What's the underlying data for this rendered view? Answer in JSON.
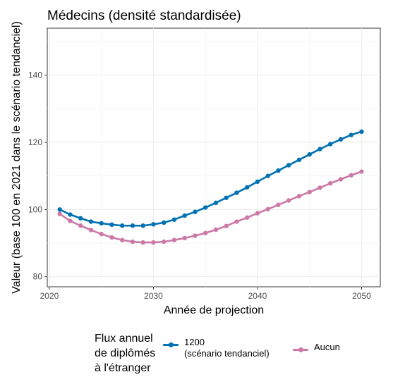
{
  "chart_data": {
    "type": "line",
    "title": "Médecins (densité standardisée)",
    "xlabel": "Année de projection",
    "ylabel": "Valeur (base 100 en 2021 dans le scénario tendanciel)",
    "xlim": [
      2019.8,
      2051.8
    ],
    "ylim": [
      77,
      154
    ],
    "x_ticks": [
      2020,
      2030,
      2040,
      2050
    ],
    "y_ticks": [
      80,
      100,
      120,
      140
    ],
    "grid": true,
    "legend_position": "bottom",
    "legend_title": "Flux annuel\nde diplômés\nà l'étranger",
    "x": [
      2021,
      2022,
      2023,
      2024,
      2025,
      2026,
      2027,
      2028,
      2029,
      2030,
      2031,
      2032,
      2033,
      2034,
      2035,
      2036,
      2037,
      2038,
      2039,
      2040,
      2041,
      2042,
      2043,
      2044,
      2045,
      2046,
      2047,
      2048,
      2049,
      2050
    ],
    "series": [
      {
        "name": "1200\n(scénario tendanciel)",
        "color": "#0072b2",
        "values": [
          100,
          98.5,
          97.4,
          96.4,
          95.9,
          95.5,
          95.2,
          95.2,
          95.2,
          95.6,
          96.1,
          97,
          98.2,
          99.3,
          100.6,
          102,
          103.5,
          105,
          106.6,
          108.3,
          110,
          111.6,
          113.2,
          114.8,
          116.4,
          118,
          119.5,
          120.9,
          122.2,
          123.2
        ]
      },
      {
        "name": "Aucun",
        "color": "#cc79a7",
        "values": [
          98.7,
          96.6,
          95.2,
          93.9,
          92.7,
          91.7,
          90.9,
          90.4,
          90.2,
          90.2,
          90.4,
          90.9,
          91.5,
          92.2,
          93,
          94,
          95.1,
          96.4,
          97.6,
          98.9,
          100.1,
          101.4,
          102.7,
          104,
          105.2,
          106.5,
          107.8,
          109,
          110.2,
          111.3
        ]
      }
    ]
  }
}
